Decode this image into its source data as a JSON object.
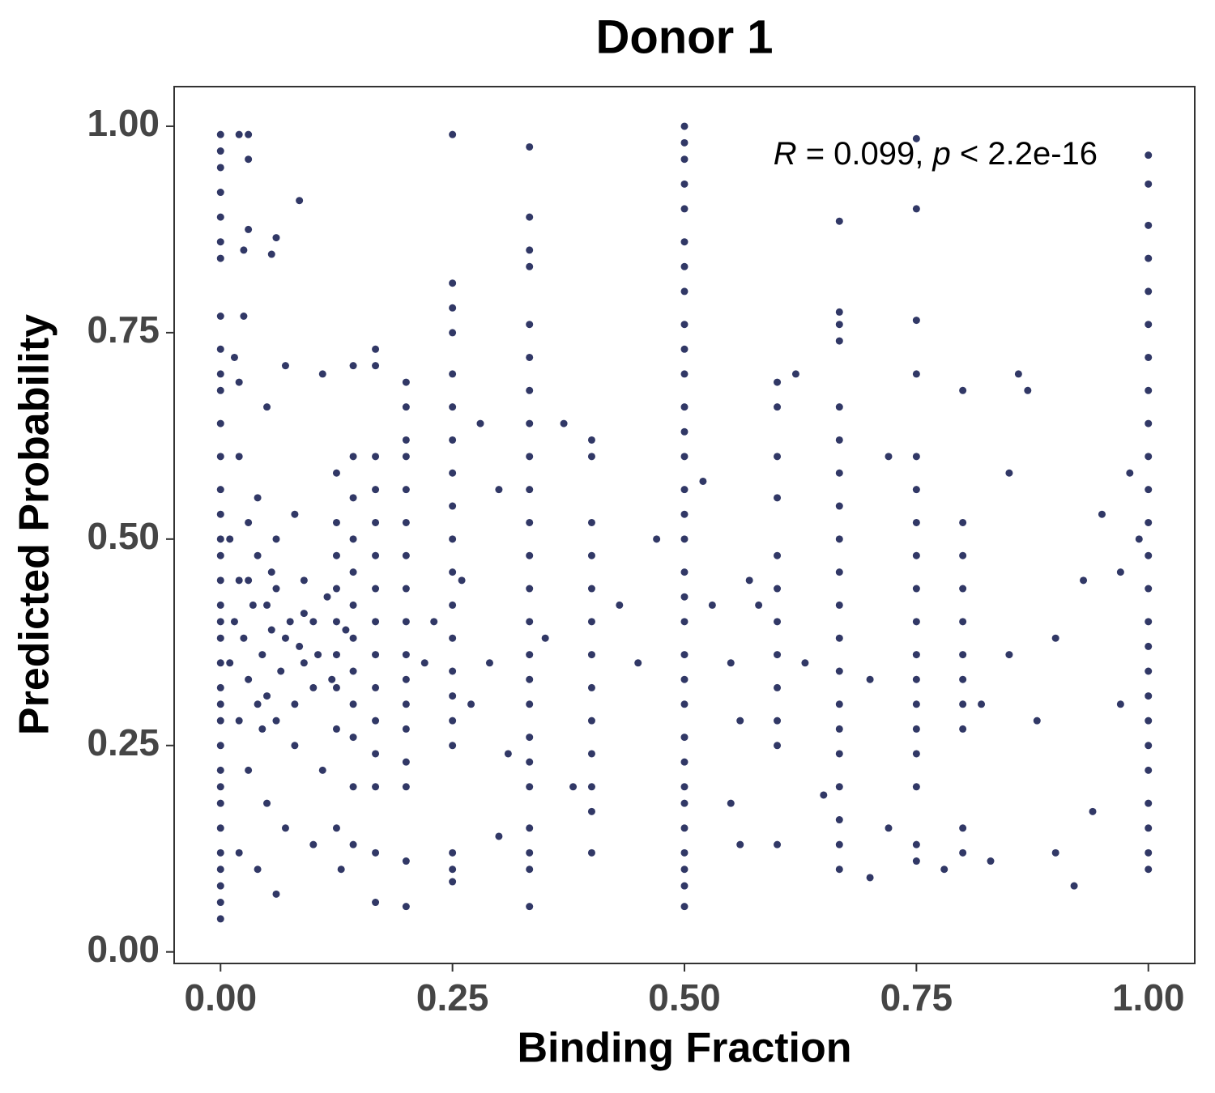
{
  "chart_data": {
    "type": "scatter",
    "title": "Donor 1",
    "x_label": "Binding Fraction",
    "y_label": "Predicted Probability",
    "annotation": {
      "r_symbol": "R",
      "r_text": " = 0.099, ",
      "p_symbol": "p",
      "p_text": " < 2.2e-16"
    },
    "color": "#313866",
    "xlim": [
      -0.05,
      1.05
    ],
    "ylim": [
      -0.014,
      1.048
    ],
    "xticks": [
      {
        "value": 0,
        "label": "0.00"
      },
      {
        "value": 0.25,
        "label": "0.25"
      },
      {
        "value": 0.5,
        "label": "0.50"
      },
      {
        "value": 0.75,
        "label": "0.75"
      },
      {
        "value": 1,
        "label": "1.00"
      }
    ],
    "yticks": [
      {
        "value": 0,
        "label": "0.00"
      },
      {
        "value": 0.25,
        "label": "0.25"
      },
      {
        "value": 0.5,
        "label": "0.50"
      },
      {
        "value": 0.75,
        "label": "0.75"
      },
      {
        "value": 1,
        "label": "1.00"
      }
    ],
    "x": [
      0,
      0,
      0,
      0,
      0,
      0,
      0,
      0,
      0,
      0,
      0,
      0,
      0,
      0,
      0,
      0,
      0,
      0,
      0,
      0,
      0,
      0,
      0,
      0,
      0,
      0,
      0,
      0,
      0,
      0,
      0,
      0,
      0,
      0,
      0,
      0.5,
      0.5,
      0.5,
      0.5,
      0.5,
      0.5,
      0.5,
      0.5,
      0.5,
      0.5,
      0.5,
      0.5,
      0.5,
      0.5,
      0.5,
      0.5,
      0.5,
      0.5,
      0.5,
      0.5,
      0.5,
      0.5,
      0.5,
      0.5,
      0.5,
      0.5,
      0.5,
      0.5,
      0.5,
      0.5,
      0.5,
      0.5,
      1,
      1,
      1,
      1,
      1,
      1,
      1,
      1,
      1,
      1,
      1,
      1,
      1,
      1,
      1,
      1,
      1,
      1,
      1,
      1,
      1,
      1,
      1,
      1,
      1,
      0.333,
      0.333,
      0.333,
      0.333,
      0.333,
      0.333,
      0.333,
      0.333,
      0.333,
      0.333,
      0.333,
      0.333,
      0.333,
      0.333,
      0.333,
      0.333,
      0.333,
      0.333,
      0.333,
      0.333,
      0.333,
      0.333,
      0.333,
      0.333,
      0.667,
      0.667,
      0.667,
      0.667,
      0.667,
      0.667,
      0.667,
      0.667,
      0.667,
      0.667,
      0.667,
      0.667,
      0.667,
      0.667,
      0.667,
      0.667,
      0.667,
      0.667,
      0.667,
      0.667,
      0.75,
      0.75,
      0.75,
      0.75,
      0.75,
      0.75,
      0.75,
      0.75,
      0.75,
      0.75,
      0.75,
      0.75,
      0.75,
      0.75,
      0.75,
      0.75,
      0.75,
      0.75,
      0.8,
      0.8,
      0.8,
      0.8,
      0.8,
      0.8,
      0.8,
      0.8,
      0.8,
      0.8,
      0.8,
      0.25,
      0.25,
      0.25,
      0.25,
      0.25,
      0.25,
      0.25,
      0.25,
      0.25,
      0.25,
      0.25,
      0.25,
      0.25,
      0.25,
      0.25,
      0.25,
      0.25,
      0.25,
      0.25,
      0.25,
      0.2,
      0.2,
      0.2,
      0.2,
      0.2,
      0.2,
      0.2,
      0.2,
      0.2,
      0.2,
      0.2,
      0.2,
      0.2,
      0.2,
      0.2,
      0.2,
      0.167,
      0.167,
      0.167,
      0.167,
      0.167,
      0.167,
      0.167,
      0.167,
      0.167,
      0.167,
      0.167,
      0.167,
      0.167,
      0.167,
      0.167,
      0.6,
      0.6,
      0.6,
      0.6,
      0.6,
      0.6,
      0.6,
      0.6,
      0.6,
      0.6,
      0.6,
      0.6,
      0.4,
      0.4,
      0.4,
      0.4,
      0.4,
      0.4,
      0.4,
      0.4,
      0.4,
      0.4,
      0.4,
      0.4,
      0.4,
      0.143,
      0.143,
      0.143,
      0.143,
      0.143,
      0.143,
      0.143,
      0.143,
      0.143,
      0.143,
      0.143,
      0.143,
      0.125,
      0.125,
      0.125,
      0.125,
      0.125,
      0.125,
      0.125,
      0.125,
      0.125,
      0.02,
      0.03,
      0.03,
      0.03,
      0.025,
      0.06,
      0.055,
      0.085,
      0.025,
      0.015,
      0.02,
      0.05,
      0.07,
      0.11,
      0.02,
      0.04,
      0.06,
      0.03,
      0.05,
      0.07,
      0.09,
      0.04,
      0.06,
      0.08,
      0.03,
      0.05,
      0.07,
      0.02,
      0.04,
      0.06,
      0.1,
      0.1,
      0.09,
      0.08,
      0.11,
      0.1,
      0.13,
      0.2,
      0.3,
      0.28,
      0.3,
      0.35,
      0.37,
      0.38,
      0.45,
      0.47,
      0.43,
      0.55,
      0.56,
      0.55,
      0.57,
      0.58,
      0.62,
      0.63,
      0.65,
      0.7,
      0.72,
      0.72,
      0.78,
      0.85,
      0.85,
      0.87,
      0.86,
      0.88,
      0.9,
      0.92,
      0.93,
      0.95,
      0.97,
      0.98,
      0.94,
      0.9,
      0.83,
      0.82,
      0.7,
      0.26,
      0.29,
      0.27,
      0.31,
      0.23,
      0.22,
      0.52,
      0.53,
      0.56,
      0.97,
      0.99,
      0.01,
      0.015,
      0.02,
      0.025,
      0.03,
      0.035,
      0.04,
      0.045,
      0.05,
      0.055,
      0.06,
      0.065,
      0.075,
      0.08,
      0.085,
      0.01,
      0.02,
      0.03,
      0.045,
      0.055,
      0.09,
      0.105,
      0.115,
      0.12,
      0.135
    ],
    "values": [
      0.04,
      0.06,
      0.08,
      0.1,
      0.12,
      0.15,
      0.18,
      0.2,
      0.22,
      0.25,
      0.28,
      0.3,
      0.32,
      0.35,
      0.38,
      0.4,
      0.42,
      0.45,
      0.48,
      0.5,
      0.53,
      0.56,
      0.6,
      0.64,
      0.68,
      0.7,
      0.73,
      0.77,
      0.84,
      0.86,
      0.89,
      0.92,
      0.95,
      0.97,
      0.99,
      0.055,
      0.08,
      0.1,
      0.12,
      0.15,
      0.18,
      0.2,
      0.23,
      0.26,
      0.3,
      0.33,
      0.36,
      0.4,
      0.43,
      0.46,
      0.5,
      0.53,
      0.56,
      0.6,
      0.63,
      0.66,
      0.7,
      0.73,
      0.76,
      0.8,
      0.83,
      0.86,
      0.9,
      0.93,
      0.96,
      0.98,
      1.0,
      0.1,
      0.12,
      0.15,
      0.18,
      0.22,
      0.25,
      0.28,
      0.31,
      0.34,
      0.37,
      0.4,
      0.44,
      0.48,
      0.52,
      0.56,
      0.6,
      0.64,
      0.68,
      0.72,
      0.76,
      0.8,
      0.84,
      0.88,
      0.93,
      0.965,
      0.055,
      0.1,
      0.12,
      0.15,
      0.2,
      0.23,
      0.26,
      0.3,
      0.33,
      0.36,
      0.4,
      0.44,
      0.48,
      0.52,
      0.56,
      0.6,
      0.64,
      0.68,
      0.72,
      0.76,
      0.83,
      0.85,
      0.89,
      0.975,
      0.1,
      0.13,
      0.16,
      0.2,
      0.24,
      0.27,
      0.3,
      0.34,
      0.38,
      0.42,
      0.46,
      0.5,
      0.54,
      0.58,
      0.62,
      0.66,
      0.74,
      0.76,
      0.775,
      0.885,
      0.11,
      0.13,
      0.2,
      0.24,
      0.27,
      0.3,
      0.33,
      0.36,
      0.4,
      0.44,
      0.48,
      0.52,
      0.56,
      0.6,
      0.7,
      0.765,
      0.9,
      0.985,
      0.12,
      0.15,
      0.27,
      0.3,
      0.33,
      0.36,
      0.4,
      0.44,
      0.48,
      0.52,
      0.68,
      0.085,
      0.1,
      0.12,
      0.25,
      0.28,
      0.31,
      0.34,
      0.38,
      0.42,
      0.46,
      0.5,
      0.54,
      0.58,
      0.62,
      0.66,
      0.7,
      0.75,
      0.78,
      0.81,
      0.99,
      0.055,
      0.2,
      0.23,
      0.27,
      0.3,
      0.33,
      0.36,
      0.4,
      0.44,
      0.48,
      0.52,
      0.56,
      0.6,
      0.62,
      0.66,
      0.69,
      0.06,
      0.12,
      0.2,
      0.24,
      0.28,
      0.32,
      0.36,
      0.4,
      0.44,
      0.48,
      0.52,
      0.56,
      0.6,
      0.71,
      0.73,
      0.13,
      0.25,
      0.28,
      0.32,
      0.36,
      0.4,
      0.44,
      0.48,
      0.55,
      0.6,
      0.66,
      0.69,
      0.12,
      0.17,
      0.2,
      0.24,
      0.28,
      0.32,
      0.36,
      0.4,
      0.44,
      0.48,
      0.52,
      0.6,
      0.62,
      0.13,
      0.2,
      0.26,
      0.3,
      0.34,
      0.38,
      0.42,
      0.46,
      0.5,
      0.55,
      0.6,
      0.71,
      0.15,
      0.27,
      0.32,
      0.36,
      0.4,
      0.44,
      0.48,
      0.52,
      0.58,
      0.99,
      0.99,
      0.96,
      0.875,
      0.85,
      0.865,
      0.845,
      0.91,
      0.77,
      0.72,
      0.69,
      0.66,
      0.71,
      0.7,
      0.6,
      0.55,
      0.5,
      0.45,
      0.42,
      0.38,
      0.35,
      0.3,
      0.28,
      0.25,
      0.22,
      0.18,
      0.15,
      0.12,
      0.1,
      0.07,
      0.4,
      0.32,
      0.45,
      0.53,
      0.22,
      0.13,
      0.1,
      0.11,
      0.14,
      0.64,
      0.56,
      0.38,
      0.64,
      0.2,
      0.35,
      0.5,
      0.42,
      0.18,
      0.28,
      0.35,
      0.45,
      0.42,
      0.7,
      0.35,
      0.19,
      0.33,
      0.6,
      0.15,
      0.1,
      0.36,
      0.58,
      0.68,
      0.7,
      0.28,
      0.38,
      0.08,
      0.45,
      0.53,
      0.46,
      0.58,
      0.17,
      0.12,
      0.11,
      0.3,
      0.09,
      0.45,
      0.35,
      0.3,
      0.24,
      0.4,
      0.35,
      0.57,
      0.42,
      0.13,
      0.3,
      0.5,
      0.35,
      0.4,
      0.45,
      0.38,
      0.33,
      0.42,
      0.48,
      0.36,
      0.31,
      0.39,
      0.44,
      0.34,
      0.4,
      0.3,
      0.37,
      0.5,
      0.28,
      0.52,
      0.27,
      0.46,
      0.41,
      0.36,
      0.43,
      0.33,
      0.39
    ]
  }
}
